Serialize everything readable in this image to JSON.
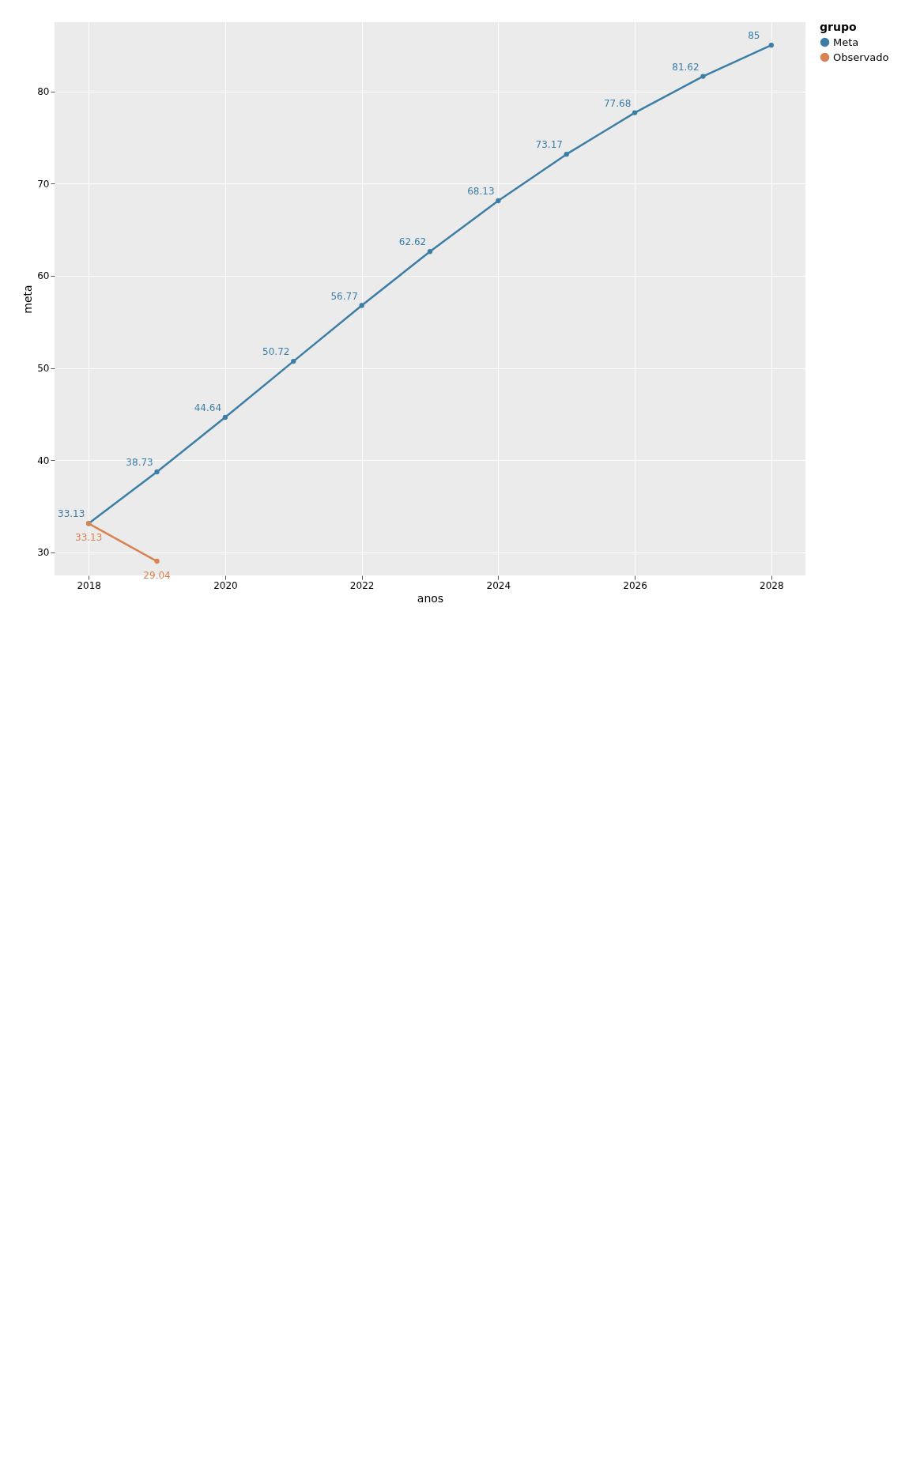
{
  "chart_data": {
    "type": "line",
    "xlabel": "anos",
    "ylabel": "meta",
    "legend_title": "grupo",
    "x": [
      2018,
      2019,
      2020,
      2021,
      2022,
      2023,
      2024,
      2025,
      2026,
      2027,
      2028
    ],
    "series": [
      {
        "name": "Meta",
        "color": "#3d7ea6",
        "values": [
          33.13,
          38.73,
          44.64,
          50.72,
          56.77,
          62.62,
          68.13,
          73.17,
          77.68,
          81.62,
          85
        ]
      },
      {
        "name": "Observado",
        "color": "#d98252",
        "x": [
          2018,
          2019
        ],
        "values": [
          33.13,
          29.04
        ]
      }
    ],
    "xlim": [
      2017.5,
      2028.5
    ],
    "xticks": [
      2018,
      2020,
      2022,
      2024,
      2026,
      2028
    ],
    "ylim": [
      27.5,
      87.5
    ],
    "yticks": [
      30,
      40,
      50,
      60,
      70,
      80
    ],
    "grid": true,
    "legend": "right",
    "marker": "circle",
    "line_style": "solid",
    "data_labels": true
  }
}
